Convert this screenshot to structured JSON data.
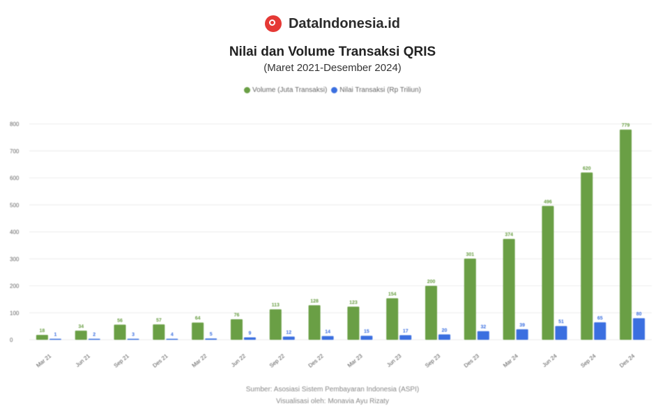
{
  "brand": {
    "name": "DataIndonesia.id",
    "logo_icon": "dataindonesia-logo-icon"
  },
  "header": {
    "title": "Nilai dan Volume Transaksi QRIS",
    "subtitle": "(Maret 2021-Desember 2024)"
  },
  "footer": {
    "source": "Sumber: Asosiasi Sistem Pembayaran Indonesia (ASPI)",
    "credit": "Visualisasi oleh: Monavia Ayu Rizaty"
  },
  "chart_data": {
    "type": "bar",
    "title": "Nilai dan Volume Transaksi QRIS",
    "categories": [
      "Mar 21",
      "Jun 21",
      "Sep 21",
      "Des 21",
      "Mar 22",
      "Jun 22",
      "Sep 22",
      "Des 22",
      "Mar 23",
      "Jun 23",
      "Sep 23",
      "Des 23",
      "Mar 24",
      "Jun 24",
      "Sep 24",
      "Des 24"
    ],
    "series": [
      {
        "name": "Volume (Juta Transaksi)",
        "color": "#6a9f45",
        "values": [
          18,
          34,
          56,
          57,
          64,
          76,
          113,
          128,
          123,
          154,
          200,
          301,
          374,
          496,
          620,
          779
        ],
        "labels": [
          "18",
          "34",
          "56",
          "57",
          "64",
          "76",
          "113",
          "128",
          "123",
          "154",
          "200",
          "301",
          "374",
          "496",
          "620",
          "779"
        ]
      },
      {
        "name": "Nilai Transaksi (Rp Triliun)",
        "color": "#3b6fe0",
        "values": [
          1,
          2,
          3,
          4,
          5,
          9,
          12,
          14,
          15,
          17,
          20,
          32,
          39,
          51,
          65,
          80
        ],
        "labels": [
          "1",
          "2",
          "3",
          "4",
          "5",
          "9",
          "12",
          "14",
          "15",
          "17",
          "20",
          "32",
          "39",
          "51",
          "65",
          "80"
        ]
      }
    ],
    "ylim": [
      0,
      800
    ],
    "yticks": [
      0,
      100,
      200,
      300,
      400,
      500,
      600,
      700,
      800
    ],
    "grid": true,
    "legend": "top-center"
  }
}
